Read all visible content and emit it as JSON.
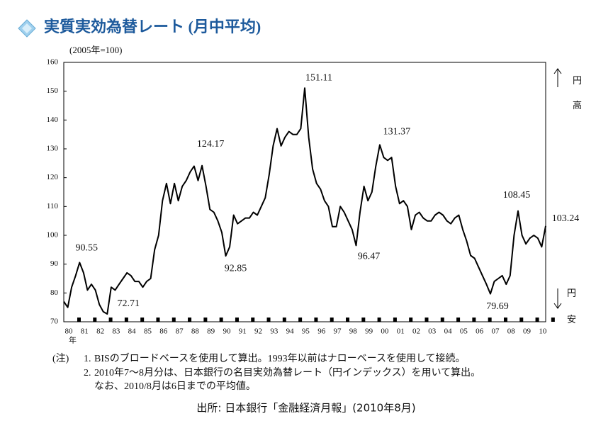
{
  "chart_data": {
    "type": "line",
    "title": "実質実効為替レート (月中平均)",
    "unit_label": "(2005年=100)",
    "x_axis_label": "年",
    "right_labels": {
      "top": [
        "円",
        "高"
      ],
      "bottom": [
        "円",
        "安"
      ]
    },
    "notes": {
      "prefix": "(注)",
      "items": [
        {
          "number": "1.",
          "lines": [
            "BISのブロードベースを使用して算出。1993年以前はナローベースを使用して接続。"
          ]
        },
        {
          "number": "2.",
          "lines": [
            "2010年7～8月分は、日本銀行の名目実効為替レート（円インデックス）を用いて算出。",
            "なお、2010/8月は6日までの平均値。"
          ]
        }
      ]
    },
    "source": "出所: 日本銀行「金融経済月報」(2010年8月)",
    "xlim": [
      1980,
      2010.5
    ],
    "xticks": [
      {
        "value": 1980,
        "label": "80"
      },
      {
        "value": 1981,
        "label": "81"
      },
      {
        "value": 1982,
        "label": "82"
      },
      {
        "value": 1983,
        "label": "83"
      },
      {
        "value": 1984,
        "label": "84"
      },
      {
        "value": 1985,
        "label": "85"
      },
      {
        "value": 1986,
        "label": "86"
      },
      {
        "value": 1987,
        "label": "87"
      },
      {
        "value": 1988,
        "label": "88"
      },
      {
        "value": 1989,
        "label": "89"
      },
      {
        "value": 1990,
        "label": "90"
      },
      {
        "value": 1991,
        "label": "91"
      },
      {
        "value": 1992,
        "label": "92"
      },
      {
        "value": 1993,
        "label": "93"
      },
      {
        "value": 1994,
        "label": "94"
      },
      {
        "value": 1995,
        "label": "95"
      },
      {
        "value": 1996,
        "label": "96"
      },
      {
        "value": 1997,
        "label": "97"
      },
      {
        "value": 1998,
        "label": "98"
      },
      {
        "value": 1999,
        "label": "99"
      },
      {
        "value": 2000,
        "label": "00"
      },
      {
        "value": 2001,
        "label": "01"
      },
      {
        "value": 2002,
        "label": "02"
      },
      {
        "value": 2003,
        "label": "03"
      },
      {
        "value": 2004,
        "label": "04"
      },
      {
        "value": 2005,
        "label": "05"
      },
      {
        "value": 2006,
        "label": "06"
      },
      {
        "value": 2007,
        "label": "07"
      },
      {
        "value": 2008,
        "label": "08"
      },
      {
        "value": 2009,
        "label": "09"
      },
      {
        "value": 2010,
        "label": "10"
      }
    ],
    "ylim": [
      70,
      160
    ],
    "yticks": [
      70,
      80,
      90,
      100,
      110,
      120,
      130,
      140,
      150,
      160
    ],
    "x": [
      1980,
      1980.25,
      1980.5,
      1980.75,
      1981,
      1981.25,
      1981.5,
      1981.75,
      1982,
      1982.25,
      1982.5,
      1982.75,
      1983,
      1983.25,
      1983.5,
      1983.75,
      1984,
      1984.25,
      1984.5,
      1984.75,
      1985,
      1985.25,
      1985.5,
      1985.75,
      1986,
      1986.25,
      1986.5,
      1986.75,
      1987,
      1987.25,
      1987.5,
      1987.75,
      1988,
      1988.25,
      1988.5,
      1988.75,
      1989,
      1989.25,
      1989.5,
      1989.75,
      1990,
      1990.25,
      1990.5,
      1990.75,
      1991,
      1991.25,
      1991.5,
      1991.75,
      1992,
      1992.25,
      1992.5,
      1992.75,
      1993,
      1993.25,
      1993.5,
      1993.75,
      1994,
      1994.25,
      1994.5,
      1994.75,
      1995,
      1995.25,
      1995.5,
      1995.75,
      1996,
      1996.25,
      1996.5,
      1996.75,
      1997,
      1997.25,
      1997.5,
      1997.75,
      1998,
      1998.25,
      1998.5,
      1998.75,
      1999,
      1999.25,
      1999.5,
      1999.75,
      2000,
      2000.25,
      2000.5,
      2000.75,
      2001,
      2001.25,
      2001.5,
      2001.75,
      2002,
      2002.25,
      2002.5,
      2002.75,
      2003,
      2003.25,
      2003.5,
      2003.75,
      2004,
      2004.25,
      2004.5,
      2004.75,
      2005,
      2005.25,
      2005.5,
      2005.75,
      2006,
      2006.25,
      2006.5,
      2006.75,
      2007,
      2007.25,
      2007.5,
      2007.75,
      2008,
      2008.25,
      2008.5,
      2008.75,
      2009,
      2009.25,
      2009.5,
      2009.75,
      2010,
      2010.25,
      2010.5
    ],
    "series": [
      {
        "name": "実質実効為替レート",
        "color": "#000000",
        "values": [
          77,
          75,
          82,
          86,
          90.55,
          87,
          81,
          83,
          81,
          76,
          73.5,
          72.71,
          82,
          81,
          83,
          85,
          87,
          86,
          84,
          84,
          82,
          84,
          85,
          95,
          100,
          112,
          118,
          111,
          118,
          112,
          117,
          119,
          122,
          124,
          119,
          124.17,
          117,
          109,
          108,
          105,
          101,
          92.85,
          96,
          107,
          104,
          105,
          106,
          106,
          108,
          107,
          110,
          113,
          121,
          131,
          137,
          131,
          134,
          136,
          135,
          135,
          137,
          151.11,
          134,
          123,
          118,
          116,
          112,
          110,
          103,
          103,
          110,
          108,
          105,
          102,
          96.47,
          108,
          117,
          112,
          115,
          124,
          131.37,
          127,
          126,
          127,
          117,
          111,
          112,
          110,
          102,
          107,
          108,
          106,
          105,
          105,
          107,
          108,
          107,
          105,
          104,
          106,
          107,
          102,
          98,
          93,
          92,
          89,
          86,
          83,
          79.69,
          84,
          85,
          86,
          83,
          86,
          100,
          108.45,
          100,
          97,
          99,
          100,
          99,
          96,
          103.24
        ]
      }
    ]
  }
}
